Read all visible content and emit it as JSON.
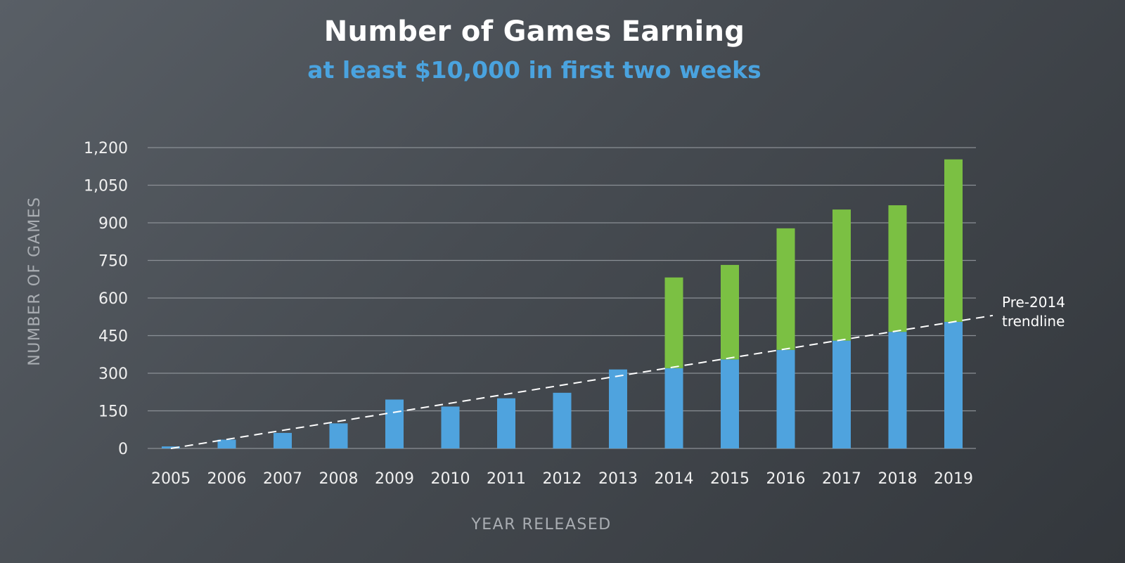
{
  "chart_data": {
    "type": "bar",
    "stacked": true,
    "title": "Number of Games Earning",
    "subtitle": "at least $10,000 in first two weeks",
    "xlabel": "YEAR RELEASED",
    "ylabel": "NUMBER OF GAMES",
    "ylim": [
      0,
      1200
    ],
    "yticks": [
      0,
      150,
      300,
      450,
      600,
      750,
      900,
      1050,
      1200
    ],
    "ytick_labels": [
      "0",
      "150",
      "300",
      "450",
      "600",
      "750",
      "900",
      "1,050",
      "1,200"
    ],
    "grid": true,
    "categories": [
      "2005",
      "2006",
      "2007",
      "2008",
      "2009",
      "2010",
      "2011",
      "2012",
      "2013",
      "2014",
      "2015",
      "2016",
      "2017",
      "2018",
      "2019"
    ],
    "series": [
      {
        "color": "#4fa3de",
        "values": [
          8,
          35,
          62,
          100,
          195,
          167,
          200,
          222,
          315,
          320,
          355,
          393,
          430,
          465,
          505
        ]
      },
      {
        "color": "#7bc043",
        "values": [
          0,
          0,
          0,
          0,
          0,
          0,
          0,
          0,
          0,
          362,
          377,
          485,
          523,
          505,
          648
        ]
      }
    ],
    "trendline": {
      "label": [
        "Pre-2014",
        "trendline"
      ],
      "start": {
        "x": "2005",
        "y": 0
      },
      "end": {
        "x": "2019",
        "y": 505
      },
      "extends_past_last_category": true,
      "style": "dashed",
      "color": "#ffffff"
    }
  }
}
